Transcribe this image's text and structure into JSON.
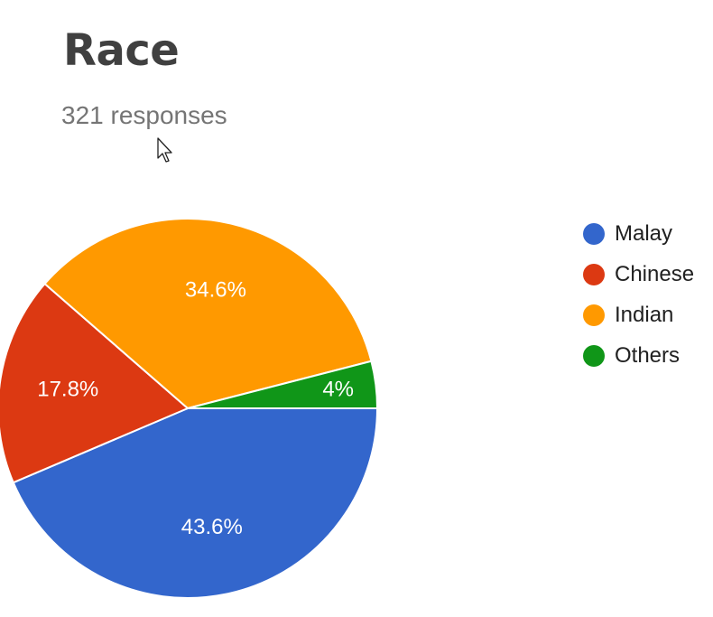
{
  "chart_data": {
    "type": "pie",
    "title": "Race",
    "subtitle": "321 responses",
    "legend_position": "right",
    "slices": [
      {
        "name": "Malay",
        "value": 43.6,
        "label": "43.6%",
        "color": "#3366cc"
      },
      {
        "name": "Chinese",
        "value": 17.8,
        "label": "17.8%",
        "color": "#dc3912"
      },
      {
        "name": "Indian",
        "value": 34.6,
        "label": "34.6%",
        "color": "#ff9900"
      },
      {
        "name": "Others",
        "value": 4,
        "label": "4%",
        "color": "#109618"
      }
    ]
  }
}
